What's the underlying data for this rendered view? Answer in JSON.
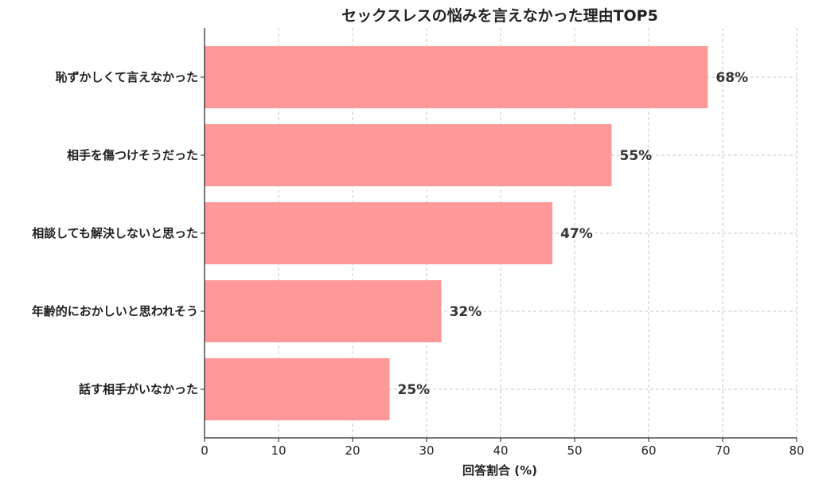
{
  "chart_data": {
    "type": "bar",
    "orientation": "horizontal",
    "title": "セックスレスの悩みを言えなかった理由TOP5",
    "xlabel": "回答割合 (%)",
    "ylabel": "",
    "categories": [
      "恥ずかしくて言えなかった",
      "相手を傷つけそうだった",
      "相談しても解決しないと思った",
      "年齢的におかしいと思われそう",
      "話す相手がいなかった"
    ],
    "values": [
      68,
      55,
      47,
      32,
      25
    ],
    "value_labels": [
      "68%",
      "55%",
      "47%",
      "32%",
      "25%"
    ],
    "xlim": [
      0,
      80
    ],
    "xticks": [
      0,
      10,
      20,
      30,
      40,
      50,
      60,
      70,
      80
    ],
    "grid": true,
    "bar_color": "#ff9999"
  }
}
